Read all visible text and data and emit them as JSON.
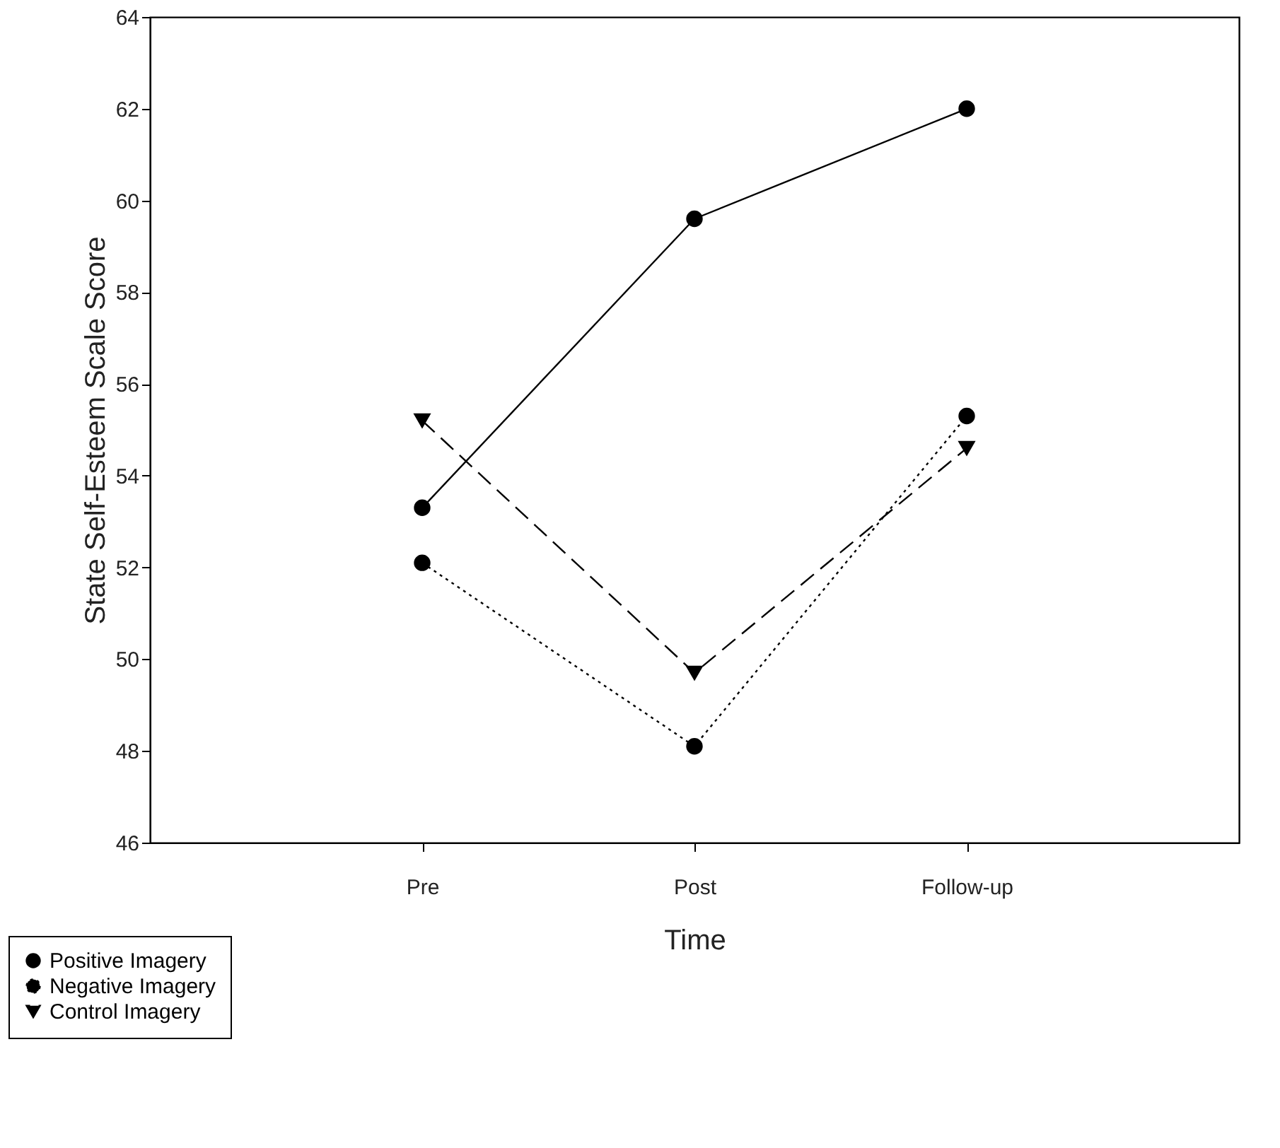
{
  "chart_data": {
    "type": "line",
    "xlabel": "Time",
    "ylabel": "State Self-Esteem Scale Score",
    "categories": [
      "Pre",
      "Post",
      "Follow-up"
    ],
    "series": [
      {
        "name": "Positive Imagery",
        "color": "#000000",
        "values": [
          53.3,
          59.6,
          62.0
        ],
        "marker": "circle",
        "line_style": "solid"
      },
      {
        "name": "Negative Imagery",
        "color": "#000000",
        "values": [
          52.1,
          48.1,
          55.3
        ],
        "marker": "circle",
        "line_style": "dotted"
      },
      {
        "name": "Control Imagery",
        "color": "#000000",
        "values": [
          55.2,
          49.7,
          54.6
        ],
        "marker": "triangle",
        "line_style": "dashed"
      }
    ],
    "ylim": [
      46,
      64
    ],
    "yticks": [
      46,
      48,
      50,
      52,
      54,
      56,
      58,
      60,
      62,
      64
    ],
    "grid": false,
    "legend": "bottom left"
  }
}
